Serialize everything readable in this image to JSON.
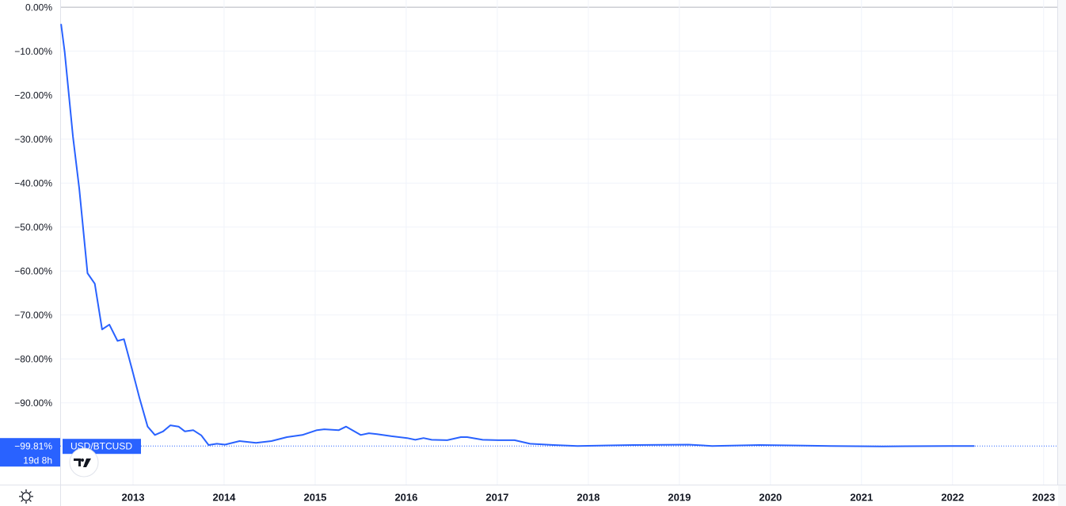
{
  "chart_data": {
    "type": "line",
    "series": [
      {
        "name": "USD/BTCUSD",
        "color": "#2962ff",
        "x": [
          2012.21,
          2012.25,
          2012.34,
          2012.41,
          2012.5,
          2012.58,
          2012.66,
          2012.74,
          2012.83,
          2012.9,
          2012.99,
          2013.07,
          2013.16,
          2013.24,
          2013.33,
          2013.41,
          2013.5,
          2013.57,
          2013.66,
          2013.75,
          2013.83,
          2013.92,
          2014.01,
          2014.17,
          2014.35,
          2014.52,
          2014.69,
          2014.86,
          2015.02,
          2015.1,
          2015.26,
          2015.34,
          2015.5,
          2015.59,
          2015.68,
          2015.84,
          2016.01,
          2016.1,
          2016.19,
          2016.28,
          2016.45,
          2016.6,
          2016.67,
          2016.84,
          2017.01,
          2017.19,
          2017.36,
          2017.62,
          2017.88,
          2018.49,
          2019.1,
          2019.36,
          2019.88,
          2020.66,
          2021.23,
          2021.97,
          2022.24
        ],
        "values": [
          -3.8,
          -10.2,
          -29.4,
          -41.3,
          -60.5,
          -62.9,
          -73.3,
          -72.2,
          -75.9,
          -75.5,
          -82.4,
          -88.8,
          -95.4,
          -97.3,
          -96.5,
          -95.1,
          -95.4,
          -96.5,
          -96.2,
          -97.4,
          -99.6,
          -99.3,
          -99.5,
          -98.7,
          -99.1,
          -98.7,
          -97.8,
          -97.3,
          -96.2,
          -96.0,
          -96.2,
          -95.4,
          -97.3,
          -96.9,
          -97.1,
          -97.6,
          -98.0,
          -98.4,
          -98.0,
          -98.4,
          -98.5,
          -97.8,
          -97.8,
          -98.4,
          -98.5,
          -98.5,
          -99.3,
          -99.6,
          -99.8,
          -99.6,
          -99.5,
          -99.8,
          -99.6,
          -99.8,
          -99.9,
          -99.8,
          -99.81
        ]
      }
    ],
    "last_value": {
      "value": -99.81,
      "label": "−99.81%"
    },
    "countdown": "19d 8h",
    "xlim": [
      2012.2,
      2023.15
    ],
    "xticks": [
      2013,
      2014,
      2015,
      2016,
      2017,
      2018,
      2019,
      2020,
      2021,
      2022,
      2023
    ],
    "ylim": [
      -108.6,
      1.65
    ],
    "yticks": [
      {
        "value": 0,
        "label": "0.00%"
      },
      {
        "value": -10,
        "label": "−10.00%"
      },
      {
        "value": -20,
        "label": "−20.00%"
      },
      {
        "value": -30,
        "label": "−30.00%"
      },
      {
        "value": -40,
        "label": "−40.00%"
      },
      {
        "value": -50,
        "label": "−50.00%"
      },
      {
        "value": -60,
        "label": "−60.00%"
      },
      {
        "value": -70,
        "label": "−70.00%"
      },
      {
        "value": -80,
        "label": "−80.00%"
      },
      {
        "value": -90,
        "label": "−90.00%"
      }
    ],
    "grid": true
  }
}
